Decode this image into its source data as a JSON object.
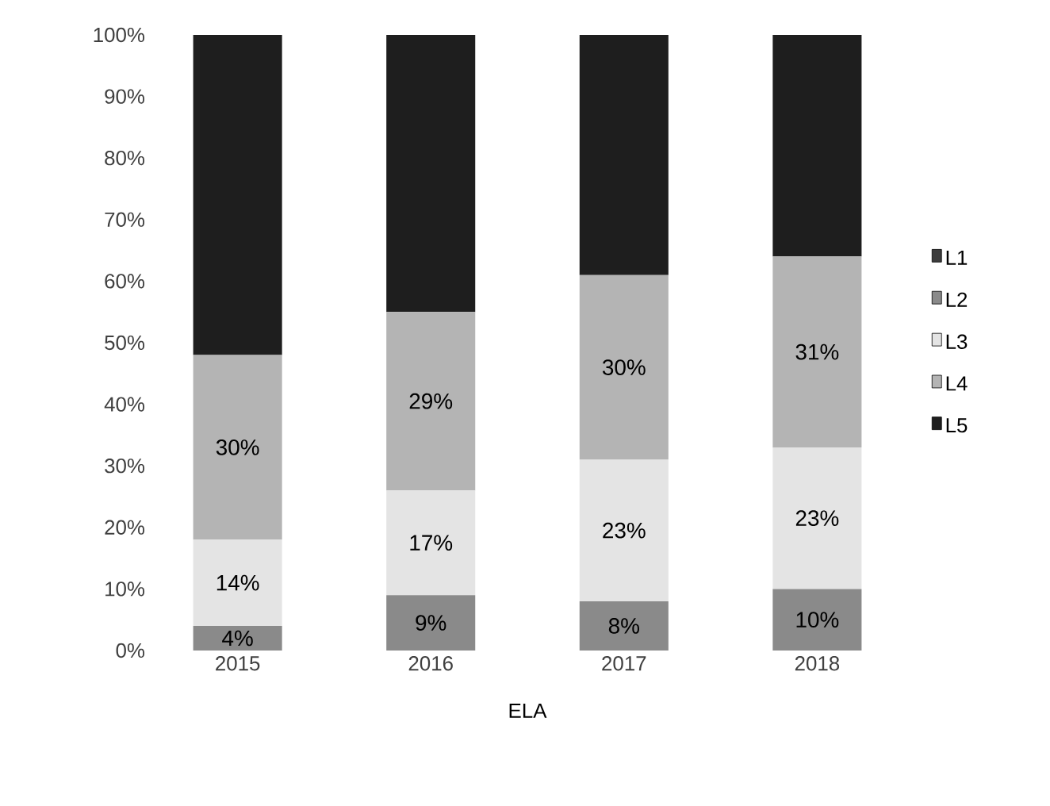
{
  "chart_data": {
    "type": "bar",
    "stacked": true,
    "xlabel": "ELA",
    "categories": [
      "2015",
      "2016",
      "2017",
      "2018"
    ],
    "ylim": [
      0,
      100
    ],
    "yticks": [
      {
        "value": 0,
        "label": "0%"
      },
      {
        "value": 10,
        "label": "10%"
      },
      {
        "value": 20,
        "label": "20%"
      },
      {
        "value": 30,
        "label": "30%"
      },
      {
        "value": 40,
        "label": "40%"
      },
      {
        "value": 50,
        "label": "50%"
      },
      {
        "value": 60,
        "label": "60%"
      },
      {
        "value": 70,
        "label": "70%"
      },
      {
        "value": 80,
        "label": "80%"
      },
      {
        "value": 90,
        "label": "90%"
      },
      {
        "value": 100,
        "label": "100%"
      }
    ],
    "legend": "right",
    "grid": false,
    "series": [
      {
        "name": "L1",
        "color": "#3c3c3c",
        "values": [
          null,
          null,
          null,
          null
        ]
      },
      {
        "name": "L2",
        "color": "#8a8a8a",
        "values": [
          4,
          9,
          8,
          10
        ],
        "value_labels": [
          "4%",
          "9%",
          "8%",
          "10%"
        ]
      },
      {
        "name": "L3",
        "color": "#e4e4e4",
        "values": [
          14,
          17,
          23,
          23
        ],
        "value_labels": [
          "14%",
          "17%",
          "23%",
          "23%"
        ]
      },
      {
        "name": "L4",
        "color": "#b4b4b4",
        "values": [
          30,
          29,
          30,
          31
        ],
        "value_labels": [
          "30%",
          "29%",
          "30%",
          "31%"
        ]
      },
      {
        "name": "L5",
        "color": "#1e1e1e",
        "values": [
          52,
          45,
          39,
          36
        ]
      }
    ]
  }
}
